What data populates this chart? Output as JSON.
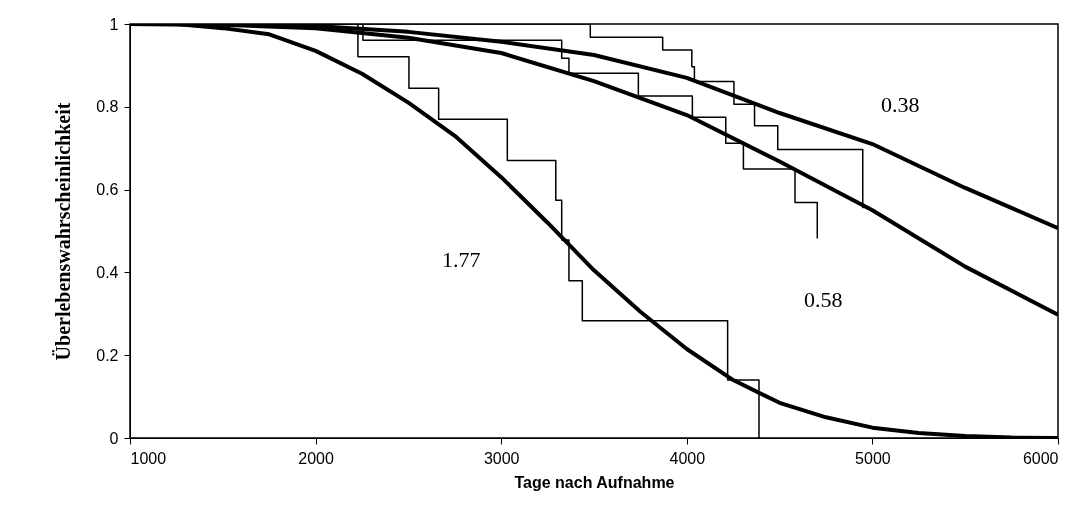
{
  "chart_data": {
    "type": "line",
    "xlabel": "Tage nach Aufnahme",
    "ylabel": "Überlebenswahrscheinlichkeit",
    "xlim": [
      1000,
      6000
    ],
    "xticks": [
      1000,
      2000,
      3000,
      4000,
      5000,
      6000
    ],
    "ylim": [
      0,
      1
    ],
    "yticks": [
      0,
      0.2,
      0.4,
      0.6,
      0.8,
      1
    ],
    "grid": false,
    "marker": "none",
    "series": [
      {
        "type": "step",
        "color": "#000000",
        "x": [
          1000,
          2228,
          2503,
          2663,
          3033,
          3294,
          3326,
          3365,
          3437,
          4220,
          4389
        ],
        "values": [
          1,
          0.921,
          0.845,
          0.77,
          0.67,
          0.574,
          0.478,
          0.38,
          0.283,
          0.14,
          0
        ]
      },
      {
        "type": "step",
        "color": "#000000",
        "x": [
          1000,
          2255,
          3326,
          3365,
          3739,
          4030,
          4210,
          4305,
          4583,
          4703
        ],
        "values": [
          1,
          0.961,
          0.917,
          0.881,
          0.826,
          0.775,
          0.712,
          0.65,
          0.569,
          0.482
        ]
      },
      {
        "type": "step",
        "color": "#000000",
        "x": [
          1000,
          3480,
          3870,
          4027,
          4041,
          4254,
          4365,
          4490,
          4948
        ],
        "values": [
          1,
          0.968,
          0.937,
          0.897,
          0.861,
          0.806,
          0.754,
          0.697,
          0.555
        ]
      },
      {
        "color": "#000000",
        "x": [
          1000,
          1250,
          1500,
          1750,
          2000,
          2250,
          2500,
          2750,
          3000,
          3250,
          3500,
          3750,
          4000,
          4250,
          4500,
          4750,
          5000,
          5250,
          5500,
          5750,
          6000
        ],
        "values": [
          1,
          1,
          0.99,
          0.975,
          0.935,
          0.88,
          0.81,
          0.73,
          0.63,
          0.52,
          0.405,
          0.305,
          0.215,
          0.14,
          0.085,
          0.05,
          0.025,
          0.012,
          0.005,
          0.001,
          0
        ]
      },
      {
        "color": "#000000",
        "x": [
          1000,
          1500,
          2000,
          2500,
          3000,
          3500,
          4000,
          4500,
          5000,
          5500,
          6000
        ],
        "values": [
          1,
          0.998,
          0.99,
          0.967,
          0.93,
          0.862,
          0.78,
          0.668,
          0.55,
          0.414,
          0.298
        ]
      },
      {
        "color": "#000000",
        "x": [
          1000,
          1500,
          2000,
          2500,
          3000,
          3500,
          4000,
          4500,
          5000,
          5500,
          6000
        ],
        "values": [
          1,
          0.999,
          0.995,
          0.981,
          0.957,
          0.925,
          0.87,
          0.785,
          0.71,
          0.604,
          0.507
        ]
      }
    ],
    "annotations": [
      "1.77",
      "0.58",
      "0.38"
    ]
  }
}
